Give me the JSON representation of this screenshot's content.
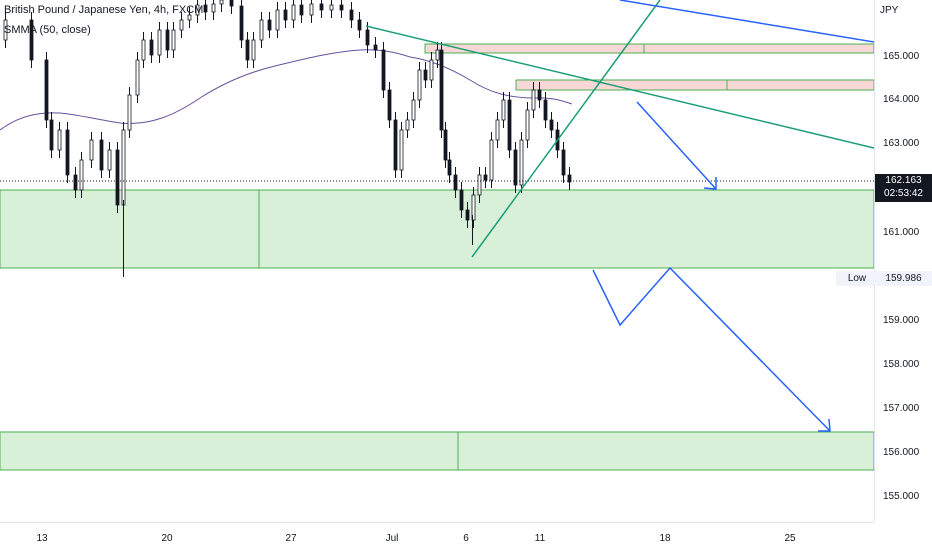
{
  "header": {
    "symbol_title": "British Pound / Japanese Yen, 4h, FXCM",
    "indicator_label": "SMMA (50, close)"
  },
  "price_axis": {
    "currency": "JPY",
    "ticks": [
      "165.000",
      "164.000",
      "163.000",
      "161.000",
      "159.000",
      "158.000",
      "157.000",
      "156.000",
      "155.000"
    ],
    "current_price": "162.163",
    "countdown": "02:53:42",
    "low_label": "Low",
    "low_value": "159.986"
  },
  "time_axis": {
    "ticks": [
      "13",
      "20",
      "27",
      "Jul",
      "6",
      "11",
      "18",
      "25"
    ]
  },
  "colors": {
    "zone_fill": "#d8f0d8",
    "zone_stroke": "#4caf50",
    "resistance_fill": "#f8d7d7",
    "trend_green": "#1a9e78",
    "trend_blue": "#2962ff",
    "arrow_blue": "#2962ff",
    "smma": "#6a4f9e",
    "candle": "#131722"
  }
}
